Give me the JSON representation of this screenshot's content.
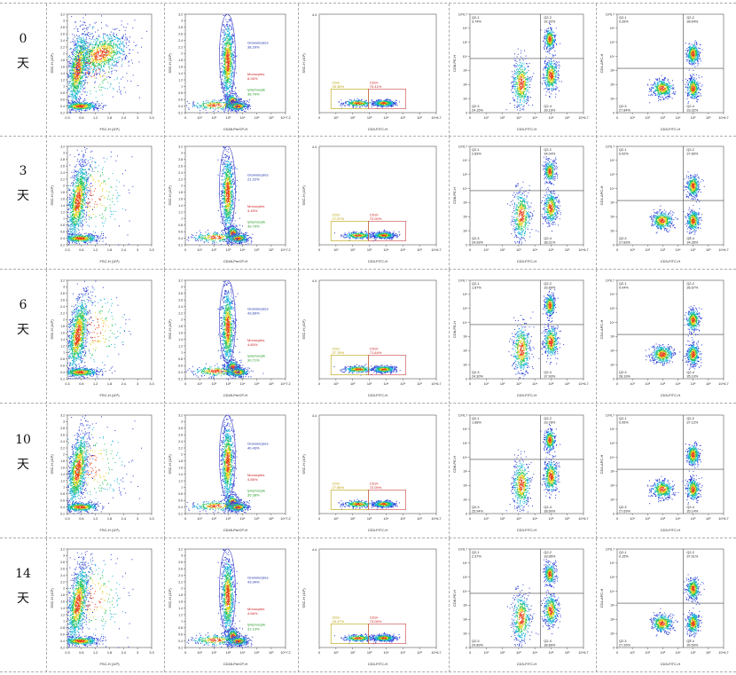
{
  "day_unit": "天",
  "axis_labels": {
    "fsc": "FSC-H (10⁶)",
    "ssc": "SSC-H (10⁶)",
    "cd45": "CD45-PerCP-H",
    "cd3": "CD3-FITC-H",
    "cd8": "CD8-PE-H",
    "cd4": "CD4-APC-H"
  },
  "tick_labels": {
    "linear_x": [
      "0.3",
      "0.6",
      "1.2",
      "1.8",
      "2.4",
      "3",
      "3.3"
    ],
    "linear_y": [
      "0.2",
      "0.4",
      "0.6",
      "0.8",
      "1",
      "1.2",
      "1.4",
      "1.6",
      "1.8",
      "2",
      "2.2",
      "2.4",
      "2.6",
      "2.8",
      "3",
      "3.2"
    ],
    "log_x": [
      "0",
      "10¹",
      "10²",
      "10³",
      "10⁴",
      "10⁵",
      "10⁶",
      "10^6.7"
    ],
    "log_x_cd45": [
      "0",
      "10¹",
      "10²",
      "10³",
      "10⁴",
      "10⁵",
      "10⁶",
      "10^7.2"
    ],
    "log_y": [
      "0",
      "10¹",
      "10²",
      "10³",
      "10⁴",
      "10⁵",
      "10⁶",
      "10^6.7"
    ],
    "ssc_top": "4.4"
  },
  "gate_labels": {
    "gran": "Granulocytes",
    "mono": "Monocytes",
    "lymph": "lymphocyte",
    "cd3neg": "CD3-",
    "cd3pos": "CD3+",
    "q1": "Q2-1",
    "q2": "Q2-2",
    "q3": "Q2-3",
    "q4": "Q2-4"
  },
  "colors": {
    "gran": "#2233aa",
    "mono": "#cc2222",
    "lymph": "#229922",
    "cd3neg": "#b8a000",
    "cd3pos": "#cc2222",
    "gate_ellipse": "#5555cc",
    "gate_rect": "#cc4444",
    "quad": "#444444"
  },
  "chart_data": {
    "type": "scatter",
    "rows": [
      {
        "day": "0",
        "cd45": {
          "gran": "38.29%",
          "mono": "8.26%",
          "lymph": "38.79%"
        },
        "cd3": {
          "neg": "25.36%",
          "pos": "70.41%"
        },
        "cd8": {
          "q1": "3.74%",
          "q2": "32.92%",
          "q3": "24.15%",
          "q4": "39.19%"
        },
        "cd4": {
          "q1": "0.26%",
          "q2": "38.64%",
          "q3": "27.84%",
          "q4": "33.32%"
        }
      },
      {
        "day": "3",
        "cd45": {
          "gran": "21.22%",
          "mono": "4.45%",
          "lymph": "39.79%"
        },
        "cd3": {
          "neg": "27.57%",
          "pos": "72.00%"
        },
        "cd8": {
          "q1": "2.83%",
          "q2": "34.04%",
          "q3": "24.93%",
          "q4": "38.21%"
        },
        "cd4": {
          "q1": "0.02%",
          "q2": "37.80%",
          "q3": "27.83%",
          "q4": "34.35%"
        }
      },
      {
        "day": "6",
        "cd45": {
          "gran": "43.89%",
          "mono": "4.60%",
          "lymph": "30.71%"
        },
        "cd3": {
          "neg": "27.76%",
          "pos": "71.64%"
        },
        "cd8": {
          "q1": "1.87%",
          "q2": "33.89%",
          "q3": "24.30%",
          "q4": "37.93%"
        },
        "cd4": {
          "q1": "0.04%",
          "q2": "36.67%",
          "q3": "28.19%",
          "q4": "35.10%"
        }
      },
      {
        "day": "10",
        "cd45": {
          "gran": "40.43%",
          "mono": "4.85%",
          "lymph": "35.38%"
        },
        "cd3": {
          "neg": "27.86%",
          "pos": "72.05%"
        },
        "cd8": {
          "q1": "1.68%",
          "q2": "33.78%",
          "q3": "25.94%",
          "q4": "38.60%"
        },
        "cd4": {
          "q1": "0.05%",
          "q2": "37.12%",
          "q3": "27.69%",
          "q4": "35.14%"
        }
      },
      {
        "day": "14",
        "cd45": {
          "gran": "43.94%",
          "mono": "4.66%",
          "lymph": "31.13%"
        },
        "cd3": {
          "neg": "26.47%",
          "pos": "73.06%"
        },
        "cd8": {
          "q1": "2.37%",
          "q2": "33.85%",
          "q3": "24.89%",
          "q4": "38.89%"
        },
        "cd4": {
          "q1": "0.15%",
          "q2": "37.01%",
          "q3": "27.26%",
          "q4": "35.59%"
        }
      }
    ]
  }
}
